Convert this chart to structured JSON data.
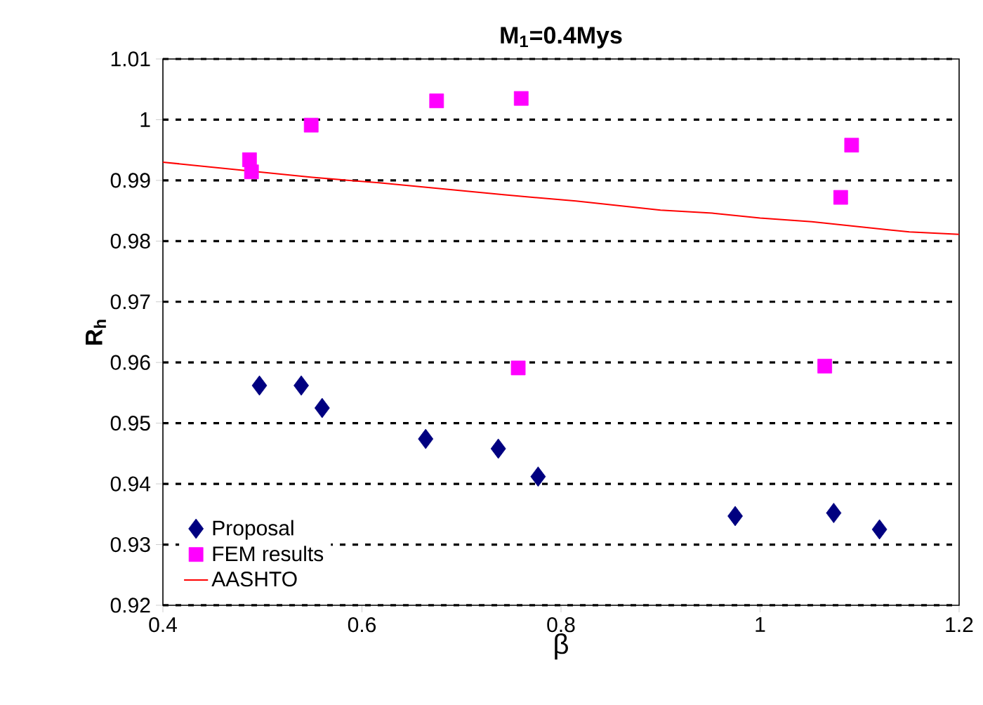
{
  "chart_data": {
    "type": "scatter",
    "title": "M$_{1}$=0.4Mys",
    "xlabel": "β",
    "ylabel": "R$_{h}$",
    "xlim": [
      0.4,
      1.2
    ],
    "xticks": [
      0.4,
      0.6,
      0.8,
      1,
      1.2
    ],
    "ylim": [
      0.92,
      1.01
    ],
    "yticks": [
      0.92,
      0.93,
      0.94,
      0.95,
      0.96,
      0.97,
      0.98,
      0.99,
      1,
      1.01
    ],
    "grid": "y",
    "legend": "bottom left",
    "series": [
      {
        "name": "Proposal",
        "marker": "diamond",
        "color": "#000080",
        "x": [
          0.497,
          0.539,
          0.56,
          0.664,
          0.737,
          0.777,
          0.975,
          1.074,
          1.12
        ],
        "values": [
          0.9562,
          0.9562,
          0.9525,
          0.9474,
          0.9458,
          0.9412,
          0.9347,
          0.9352,
          0.9325
        ]
      },
      {
        "name": "FEM results",
        "marker": "square",
        "color": "#ff00ff",
        "x": [
          0.487,
          0.489,
          0.549,
          0.675,
          0.76,
          0.757,
          1.065,
          1.081,
          1.092
        ],
        "values": [
          0.9934,
          0.9914,
          0.9991,
          1.0031,
          1.0035,
          0.9591,
          0.9594,
          0.9872,
          0.9958
        ]
      },
      {
        "name": "AASHTO",
        "type": "line",
        "marker": "none",
        "color": "#ff0000",
        "x": [
          0.4,
          0.55,
          0.617,
          0.744,
          0.815,
          0.9,
          0.952,
          1.0,
          1.052,
          1.15,
          1.2
        ],
        "values": [
          0.993,
          0.9905,
          0.9896,
          0.9876,
          0.9866,
          0.9851,
          0.9846,
          0.9838,
          0.9832,
          0.9815,
          0.9811
        ]
      }
    ]
  }
}
